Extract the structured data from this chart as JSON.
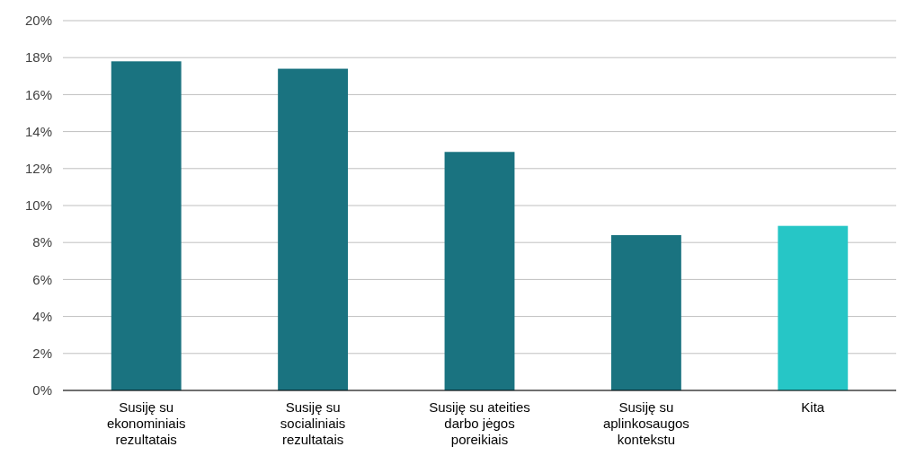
{
  "chart_data": {
    "type": "bar",
    "categories": [
      "Susiję su ekonominiais rezultatais",
      "Susiję su socialiniais rezultatais",
      "Susiję su ateities darbo jėgos poreikiais",
      "Susiję su aplinkosaugos kontekstu",
      "Kita"
    ],
    "values": [
      17.8,
      17.4,
      12.9,
      8.4,
      8.9
    ],
    "colors": [
      "#1a7380",
      "#1a7380",
      "#1a7380",
      "#1a7380",
      "#26c6c6"
    ],
    "ylim": [
      0,
      20
    ],
    "yticks": [
      {
        "value": 0,
        "label": "0%"
      },
      {
        "value": 2,
        "label": "2%"
      },
      {
        "value": 4,
        "label": "4%"
      },
      {
        "value": 6,
        "label": "6%"
      },
      {
        "value": 8,
        "label": "8%"
      },
      {
        "value": 10,
        "label": "10%"
      },
      {
        "value": 12,
        "label": "12%"
      },
      {
        "value": 14,
        "label": "14%"
      },
      {
        "value": 16,
        "label": "16%"
      },
      {
        "value": 18,
        "label": "18%"
      },
      {
        "value": 20,
        "label": "20%"
      }
    ],
    "grid": "y"
  }
}
